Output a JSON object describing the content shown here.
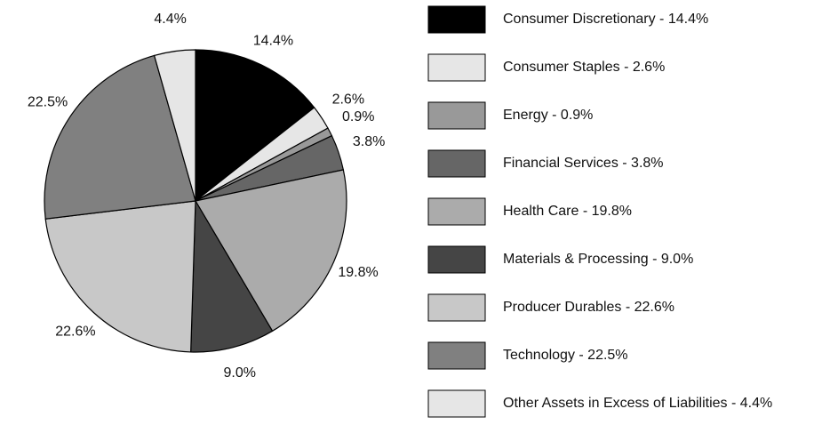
{
  "chart_data": {
    "type": "pie",
    "categories": [
      "Consumer Discretionary - 14.4%",
      "Consumer Staples - 2.6%",
      "Energy - 0.9%",
      "Financial Services - 3.8%",
      "Health Care - 19.8%",
      "Materials & Processing - 9.0%",
      "Producer Durables - 22.6%",
      "Technology - 22.5%",
      "Other Assets in Excess of Liabilities - 4.4%"
    ],
    "values": [
      14.4,
      2.6,
      0.9,
      3.8,
      19.8,
      9.0,
      22.6,
      22.5,
      4.4
    ],
    "value_labels": [
      "14.4%",
      "2.6%",
      "0.9%",
      "3.8%",
      "19.8%",
      "9.0%",
      "22.6%",
      "22.5%",
      "4.4%"
    ],
    "colors": [
      "#000000",
      "#e6e6e6",
      "#999999",
      "#666666",
      "#ababab",
      "#454545",
      "#c8c8c8",
      "#808080",
      "#e6e6e6"
    ],
    "legend": "right"
  }
}
